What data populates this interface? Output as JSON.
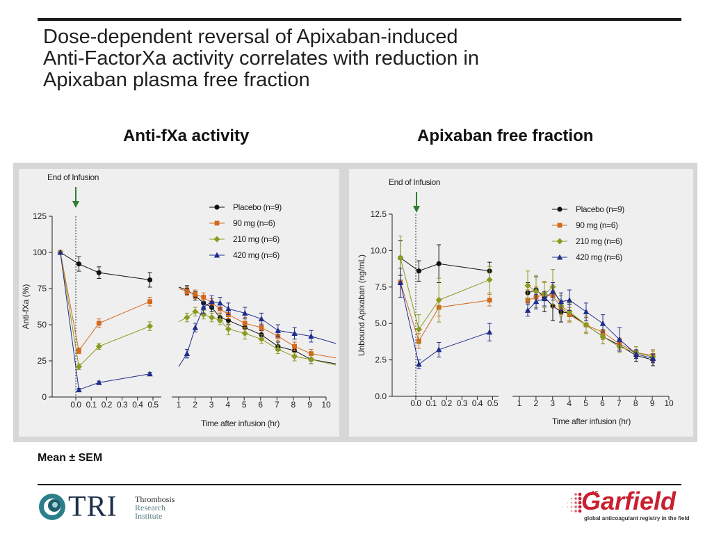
{
  "slide": {
    "title_lines": [
      "Dose-dependent reversal of Apixaban-induced",
      "Anti-FactorXa activity correlates with reduction in",
      "Apixaban plasma free fraction"
    ],
    "subtitle_left": "Anti-fXa activity",
    "subtitle_right": "Apixaban free fraction",
    "footnote": "Mean ± SEM"
  },
  "logos": {
    "tri_word": "TRI",
    "tri_lines": [
      "Thrombosis",
      "Research",
      "Institute"
    ],
    "garfield_word": "Garfield",
    "garfield_prefix": "AF",
    "garfield_tagline": "global anticoagulant registry in the field"
  },
  "colors": {
    "placebo": "#111111",
    "mg90": "#d2691e",
    "mg210": "#8c9a1e",
    "mg420": "#1e2c8c",
    "eoi_arrow": "#2e7d32"
  },
  "chart_data": [
    {
      "type": "line",
      "annotation": "End of Infusion",
      "ylabel": "Anti-fXa (%)",
      "xlabel": "Time after infusion (hr)",
      "ylim": [
        0,
        125
      ],
      "yticks": [
        "0",
        "25",
        "50",
        "75",
        "100",
        "125"
      ],
      "yvals": [
        0,
        25,
        50,
        75,
        100,
        125
      ],
      "xticks_early": [
        "0.0",
        "0.1",
        "0.2",
        "0.3",
        "0.4",
        "0.5"
      ],
      "xticks_late": [
        "1",
        "2",
        "3",
        "4",
        "5",
        "6",
        "7",
        "8",
        "9",
        "10"
      ],
      "legend_position": "top-right",
      "series": [
        {
          "name": "Placebo (n=9)",
          "marker": "circle",
          "color": "#111111",
          "early": {
            "x": [
              -0.1,
              0.02,
              0.15,
              0.48
            ],
            "y": [
              100,
              92,
              86,
              81
            ],
            "err": [
              0,
              5,
              4,
              5
            ]
          },
          "late": {
            "x": [
              0.5,
              1,
              1.5,
              2,
              2.5,
              3,
              3.5,
              4.5,
              5.5,
              6.5,
              7.5,
              8.5,
              10
            ],
            "y": [
              76,
              74,
              70,
              65,
              62,
              55,
              53,
              48,
              43,
              35,
              32,
              26,
              23
            ],
            "err": [
              0,
              3,
              3,
              3,
              3,
              3,
              3,
              4,
              3,
              3,
              3,
              3,
              0
            ]
          }
        },
        {
          "name": "90 mg (n=6)",
          "marker": "square",
          "color": "#d2691e",
          "early": {
            "x": [
              -0.1,
              0.02,
              0.15,
              0.48
            ],
            "y": [
              100,
              32,
              51,
              66
            ],
            "err": [
              0,
              2,
              3,
              3
            ]
          },
          "late": {
            "x": [
              0.5,
              1,
              1.5,
              2,
              2.5,
              3,
              3.5,
              4.5,
              5.5,
              6.5,
              7.5,
              8.5,
              10
            ],
            "y": [
              75,
              73,
              71,
              69,
              65,
              61,
              57,
              51,
              48,
              42,
              35,
              30,
              27
            ],
            "err": [
              0,
              3,
              3,
              3,
              3,
              3,
              3,
              4,
              3,
              3,
              3,
              3,
              0
            ]
          }
        },
        {
          "name": "210 mg (n=6)",
          "marker": "diamond",
          "color": "#8c9a1e",
          "early": {
            "x": [
              -0.1,
              0.02,
              0.15,
              0.48
            ],
            "y": [
              100,
              21,
              35,
              49
            ],
            "err": [
              0,
              2,
              2,
              3
            ]
          },
          "late": {
            "x": [
              0.5,
              1,
              1.5,
              2,
              2.5,
              3,
              3.5,
              4.5,
              5.5,
              6.5,
              7.5,
              8.5,
              10
            ],
            "y": [
              52,
              55,
              59,
              57,
              55,
              53,
              47,
              44,
              40,
              33,
              28,
              26,
              22
            ],
            "err": [
              0,
              3,
              3,
              3,
              3,
              3,
              4,
              4,
              3,
              3,
              3,
              3,
              0
            ]
          }
        },
        {
          "name": "420 mg (n=6)",
          "marker": "triangle",
          "color": "#1e2c8c",
          "early": {
            "x": [
              -0.1,
              0.02,
              0.15,
              0.48
            ],
            "y": [
              100,
              5,
              10,
              16
            ],
            "err": [
              0,
              1,
              1,
              1
            ]
          },
          "late": {
            "x": [
              0.5,
              1,
              1.5,
              2,
              2.5,
              3,
              3.5,
              4.5,
              5.5,
              6.5,
              7.5,
              8.5,
              10
            ],
            "y": [
              21,
              30,
              48,
              62,
              66,
              65,
              61,
              58,
              54,
              46,
              44,
              42,
              37
            ],
            "err": [
              0,
              3,
              3,
              4,
              4,
              4,
              4,
              4,
              4,
              4,
              4,
              4,
              0
            ]
          }
        }
      ]
    },
    {
      "type": "line",
      "annotation": "End of Infusion",
      "ylabel": "Unbound Apixaban (ng/mL)",
      "xlabel": "Time after infusion (hr)",
      "ylim": [
        0,
        12.5
      ],
      "yticks": [
        "0.0",
        "2.5",
        "5.0",
        "7.5",
        "10.0",
        "12.5"
      ],
      "yvals": [
        0,
        2.5,
        5,
        7.5,
        10,
        12.5
      ],
      "xticks_early": [
        "0.0",
        "0.1",
        "0.2",
        "0.3",
        "0.4",
        "0.5"
      ],
      "xticks_late": [
        "1",
        "2",
        "3",
        "4",
        "5",
        "6",
        "7",
        "8",
        "9",
        "10"
      ],
      "legend_position": "top-right",
      "series": [
        {
          "name": "Placebo (n=9)",
          "marker": "circle",
          "color": "#111111",
          "early": {
            "x": [
              -0.1,
              0.02,
              0.15,
              0.48
            ],
            "y": [
              9.5,
              8.6,
              9.1,
              8.6
            ],
            "err": [
              1.2,
              0.7,
              1.3,
              0.6
            ]
          },
          "late": {
            "x": [
              1,
              1.5,
              2,
              2.5,
              3,
              3.5,
              4.5,
              5.5,
              6.5,
              7.5,
              8.5
            ],
            "y": [
              7.1,
              7.3,
              6.8,
              6.2,
              5.8,
              5.7,
              4.9,
              4.1,
              3.5,
              2.8,
              2.5
            ],
            "err": [
              0.7,
              0.9,
              1.0,
              1.0,
              0.7,
              0.6,
              0.5,
              0.5,
              0.4,
              0.4,
              0.4
            ]
          }
        },
        {
          "name": "90 mg (n=6)",
          "marker": "square",
          "color": "#d2691e",
          "early": {
            "x": [
              -0.1,
              0.02,
              0.15,
              0.48
            ],
            "y": [
              7.8,
              3.8,
              6.1,
              6.6
            ],
            "err": [
              1.0,
              0.5,
              0.6,
              0.4
            ]
          },
          "late": {
            "x": [
              1,
              1.5,
              2,
              2.5,
              3,
              3.5,
              4.5,
              5.5,
              6.5,
              7.5,
              8.5
            ],
            "y": [
              6.6,
              6.8,
              7.0,
              6.9,
              6.1,
              5.6,
              4.9,
              4.4,
              3.6,
              3.0,
              2.8
            ],
            "err": [
              0.7,
              0.7,
              0.8,
              0.8,
              0.5,
              0.5,
              0.5,
              0.5,
              0.4,
              0.4,
              0.4
            ]
          }
        },
        {
          "name": "210 mg (n=6)",
          "marker": "diamond",
          "color": "#8c9a1e",
          "early": {
            "x": [
              -0.1,
              0.02,
              0.15,
              0.48
            ],
            "y": [
              9.5,
              4.6,
              6.6,
              8.0
            ],
            "err": [
              1.5,
              1.0,
              1.5,
              0.9
            ]
          },
          "late": {
            "x": [
              1,
              1.5,
              2,
              2.5,
              3,
              3.5,
              4.5,
              5.5,
              6.5,
              7.5,
              8.5
            ],
            "y": [
              7.6,
              7.2,
              7.0,
              7.5,
              6.2,
              5.8,
              4.9,
              4.1,
              3.4,
              3.0,
              2.7
            ],
            "err": [
              1.0,
              1.1,
              0.9,
              1.2,
              0.7,
              0.6,
              0.6,
              0.5,
              0.4,
              0.4,
              0.4
            ]
          }
        },
        {
          "name": "420 mg (n=6)",
          "marker": "triangle",
          "color": "#1e2c8c",
          "early": {
            "x": [
              -0.1,
              0.02,
              0.15,
              0.48
            ],
            "y": [
              7.8,
              2.2,
              3.2,
              4.4
            ],
            "err": [
              1.0,
              0.3,
              0.5,
              0.6
            ]
          },
          "late": {
            "x": [
              1,
              1.5,
              2,
              2.5,
              3,
              3.5,
              4.5,
              5.5,
              6.5,
              7.5,
              8.5
            ],
            "y": [
              5.9,
              6.5,
              6.7,
              7.2,
              6.5,
              6.6,
              5.8,
              5.0,
              3.9,
              2.9,
              2.6
            ],
            "err": [
              0.4,
              0.5,
              0.5,
              0.6,
              0.6,
              0.7,
              0.6,
              0.6,
              0.8,
              0.3,
              0.3
            ]
          }
        }
      ]
    }
  ]
}
